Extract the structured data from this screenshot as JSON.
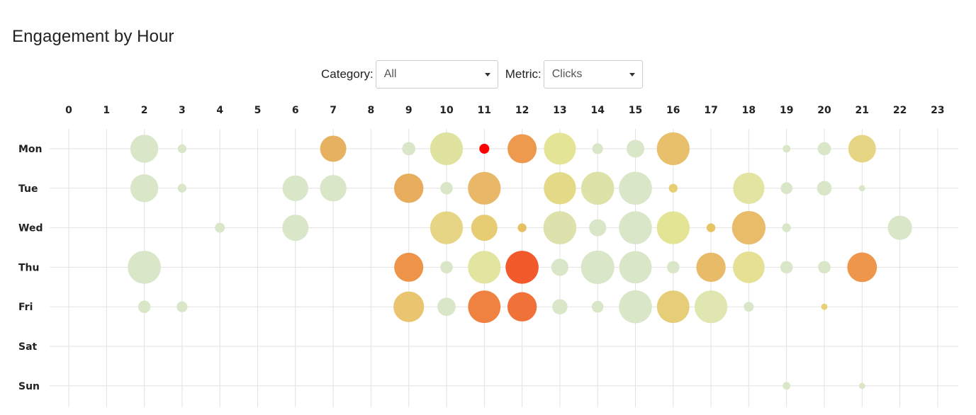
{
  "page": {
    "title": "Engagement by Hour"
  },
  "controls": {
    "category_label": "Category:",
    "category_value": "All",
    "metric_label": "Metric:",
    "metric_value": "Clicks",
    "caret_icon": "chevron-down-icon"
  },
  "chart_data": {
    "type": "scatter",
    "subtype": "punch-card bubble chart",
    "title": "Engagement by Hour",
    "x_ticks": [
      "0",
      "1",
      "2",
      "3",
      "4",
      "5",
      "6",
      "7",
      "8",
      "9",
      "10",
      "11",
      "12",
      "13",
      "14",
      "15",
      "16",
      "17",
      "18",
      "19",
      "20",
      "21",
      "22",
      "23"
    ],
    "y_ticks": [
      "Mon",
      "Tue",
      "Wed",
      "Thu",
      "Fri",
      "Sat",
      "Sun"
    ],
    "grid": true,
    "size_encoding": "bubble area ~ value",
    "color_scale": [
      "#d9e6c8",
      "#e3e39a",
      "#e6c56f",
      "#ef9148",
      "#f2552a",
      "#ff0000"
    ],
    "points": [
      {
        "day": "Mon",
        "hour": 2,
        "value": 0.4
      },
      {
        "day": "Mon",
        "hour": 3,
        "value": 0.04
      },
      {
        "day": "Mon",
        "hour": 7,
        "value": 0.35,
        "color": "#e6b160"
      },
      {
        "day": "Mon",
        "hour": 9,
        "value": 0.09
      },
      {
        "day": "Mon",
        "hour": 10,
        "value": 0.55,
        "color": "#e0e3a0"
      },
      {
        "day": "Mon",
        "hour": 11,
        "value": 0.05,
        "color": "#ff0000"
      },
      {
        "day": "Mon",
        "hour": 12,
        "value": 0.43,
        "color": "#ed9a4e"
      },
      {
        "day": "Mon",
        "hour": 13,
        "value": 0.52,
        "color": "#e3e496"
      },
      {
        "day": "Mon",
        "hour": 14,
        "value": 0.06
      },
      {
        "day": "Mon",
        "hour": 15,
        "value": 0.16
      },
      {
        "day": "Mon",
        "hour": 16,
        "value": 0.55,
        "color": "#e8c06c"
      },
      {
        "day": "Mon",
        "hour": 19,
        "value": 0.03
      },
      {
        "day": "Mon",
        "hour": 20,
        "value": 0.09
      },
      {
        "day": "Mon",
        "hour": 21,
        "value": 0.39,
        "color": "#e6d582"
      },
      {
        "day": "Tue",
        "hour": 2,
        "value": 0.4
      },
      {
        "day": "Tue",
        "hour": 3,
        "value": 0.04
      },
      {
        "day": "Tue",
        "hour": 6,
        "value": 0.34
      },
      {
        "day": "Tue",
        "hour": 7,
        "value": 0.36
      },
      {
        "day": "Tue",
        "hour": 9,
        "value": 0.44,
        "color": "#e8ad5c"
      },
      {
        "day": "Tue",
        "hour": 10,
        "value": 0.08
      },
      {
        "day": "Tue",
        "hour": 11,
        "value": 0.55,
        "color": "#e8b868"
      },
      {
        "day": "Tue",
        "hour": 13,
        "value": 0.53,
        "color": "#e3d986"
      },
      {
        "day": "Tue",
        "hour": 14,
        "value": 0.56,
        "color": "#dde3a8"
      },
      {
        "day": "Tue",
        "hour": 15,
        "value": 0.56
      },
      {
        "day": "Tue",
        "hour": 16,
        "value": 0.04,
        "color": "#e6cf72"
      },
      {
        "day": "Tue",
        "hour": 18,
        "value": 0.5,
        "color": "#e3e4a2"
      },
      {
        "day": "Tue",
        "hour": 19,
        "value": 0.07
      },
      {
        "day": "Tue",
        "hour": 20,
        "value": 0.11
      },
      {
        "day": "Tue",
        "hour": 21,
        "value": 0.02
      },
      {
        "day": "Wed",
        "hour": 4,
        "value": 0.05
      },
      {
        "day": "Wed",
        "hour": 6,
        "value": 0.35
      },
      {
        "day": "Wed",
        "hour": 10,
        "value": 0.55,
        "color": "#e6d584"
      },
      {
        "day": "Wed",
        "hour": 11,
        "value": 0.35,
        "color": "#e6cc72"
      },
      {
        "day": "Wed",
        "hour": 12,
        "value": 0.04,
        "color": "#e6c062"
      },
      {
        "day": "Wed",
        "hour": 13,
        "value": 0.56,
        "color": "#dde2ad"
      },
      {
        "day": "Wed",
        "hour": 14,
        "value": 0.15
      },
      {
        "day": "Wed",
        "hour": 15,
        "value": 0.56
      },
      {
        "day": "Wed",
        "hour": 16,
        "value": 0.55,
        "color": "#e3e494"
      },
      {
        "day": "Wed",
        "hour": 17,
        "value": 0.04,
        "color": "#e6c363"
      },
      {
        "day": "Wed",
        "hour": 18,
        "value": 0.57,
        "color": "#e8bc68"
      },
      {
        "day": "Wed",
        "hour": 19,
        "value": 0.04
      },
      {
        "day": "Wed",
        "hour": 22,
        "value": 0.3
      },
      {
        "day": "Thu",
        "hour": 2,
        "value": 0.56
      },
      {
        "day": "Thu",
        "hour": 9,
        "value": 0.43,
        "color": "#ee9448"
      },
      {
        "day": "Thu",
        "hour": 10,
        "value": 0.08
      },
      {
        "day": "Thu",
        "hour": 11,
        "value": 0.55,
        "color": "#e2e5a0"
      },
      {
        "day": "Thu",
        "hour": 12,
        "value": 0.56,
        "color": "#f25a2c"
      },
      {
        "day": "Thu",
        "hour": 13,
        "value": 0.15
      },
      {
        "day": "Thu",
        "hour": 14,
        "value": 0.57
      },
      {
        "day": "Thu",
        "hour": 15,
        "value": 0.54
      },
      {
        "day": "Thu",
        "hour": 16,
        "value": 0.08
      },
      {
        "day": "Thu",
        "hour": 17,
        "value": 0.44,
        "color": "#e8bb68"
      },
      {
        "day": "Thu",
        "hour": 18,
        "value": 0.51,
        "color": "#e6e094"
      },
      {
        "day": "Thu",
        "hour": 19,
        "value": 0.08
      },
      {
        "day": "Thu",
        "hour": 20,
        "value": 0.08
      },
      {
        "day": "Thu",
        "hour": 21,
        "value": 0.45,
        "color": "#ed964c"
      },
      {
        "day": "Fri",
        "hour": 2,
        "value": 0.08
      },
      {
        "day": "Fri",
        "hour": 3,
        "value": 0.06
      },
      {
        "day": "Fri",
        "hour": 9,
        "value": 0.48,
        "color": "#e8c56e"
      },
      {
        "day": "Fri",
        "hour": 10,
        "value": 0.17
      },
      {
        "day": "Fri",
        "hour": 11,
        "value": 0.54,
        "color": "#ef8240"
      },
      {
        "day": "Fri",
        "hour": 12,
        "value": 0.44,
        "color": "#f07238"
      },
      {
        "day": "Fri",
        "hour": 13,
        "value": 0.12
      },
      {
        "day": "Fri",
        "hour": 14,
        "value": 0.07
      },
      {
        "day": "Fri",
        "hour": 15,
        "value": 0.56
      },
      {
        "day": "Fri",
        "hour": 16,
        "value": 0.54,
        "color": "#e6cd78"
      },
      {
        "day": "Fri",
        "hour": 17,
        "value": 0.55,
        "color": "#e0e6b0"
      },
      {
        "day": "Fri",
        "hour": 18,
        "value": 0.05
      },
      {
        "day": "Fri",
        "hour": 20,
        "value": 0.02,
        "color": "#e6d272"
      },
      {
        "day": "Sun",
        "hour": 19,
        "value": 0.03
      },
      {
        "day": "Sun",
        "hour": 21,
        "value": 0.02
      }
    ]
  }
}
